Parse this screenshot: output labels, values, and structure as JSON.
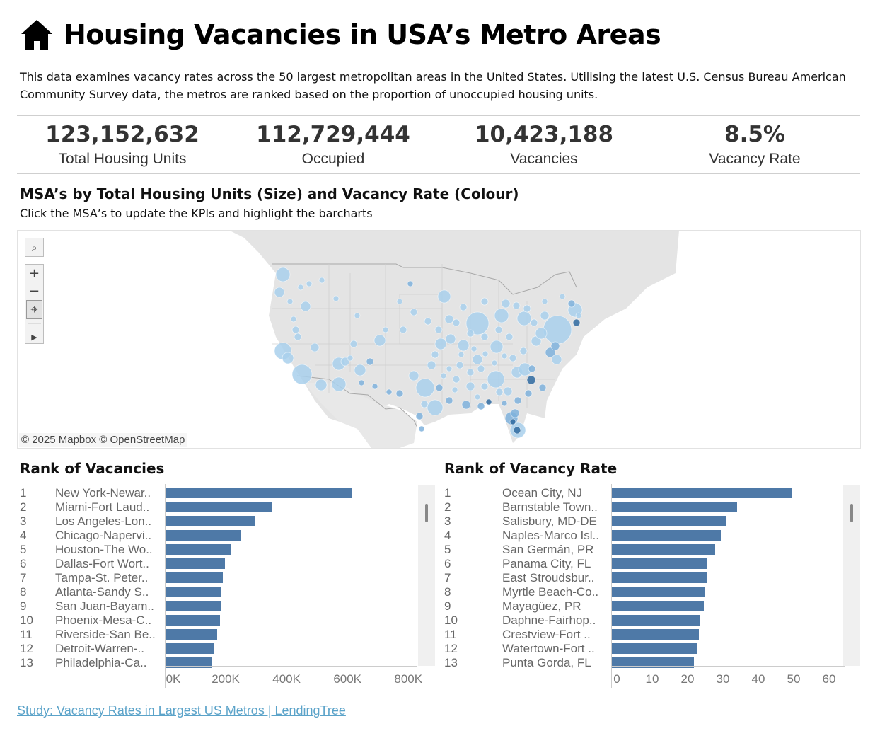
{
  "header": {
    "icon": "home-icon",
    "title": "Housing Vacancies in USA’s Metro Areas",
    "description": "This data  examines vacancy rates across the 50 largest metropolitan areas in the United States. Utilising the latest U.S. Census Bureau American Community Survey data, the metros are ranked based on the proportion of unoccupied housing units."
  },
  "kpis": [
    {
      "value": "123,152,632",
      "label": "Total Housing Units"
    },
    {
      "value": "112,729,444",
      "label": "Occupied"
    },
    {
      "value": "10,423,188",
      "label": "Vacancies"
    },
    {
      "value": "8.5%",
      "label": "Vacancy Rate"
    }
  ],
  "map": {
    "title": "MSA’s by Total Housing Units (Size) and Vacancy Rate (Colour)",
    "subtitle": "Click the MSA’s to update the KPIs and highlight the barcharts",
    "attribution": "© 2025 Mapbox © OpenStreetMap",
    "controls": {
      "search": "⌕",
      "zoom_in": "+",
      "zoom_out": "−",
      "pin": "⌖",
      "expand": "▶"
    },
    "colors": {
      "light": "#a9d0ec",
      "mid": "#7fb2dc",
      "dark": "#2f6aa0"
    }
  },
  "chart_data": [
    {
      "type": "bar",
      "title": "Rank of Vacancies",
      "orientation": "horizontal",
      "ranks": [
        "1",
        "2",
        "3",
        "4",
        "5",
        "6",
        "7",
        "8",
        "9",
        "10",
        "11",
        "12",
        "13"
      ],
      "categories": [
        "New York-Newar..",
        "Miami-Fort Laud..",
        "Los Angeles-Lon..",
        "Chicago-Napervi..",
        "Houston-The Wo..",
        "Dallas-Fort Wort..",
        "Tampa-St. Peter..",
        "Atlanta-Sandy S..",
        "San Juan-Bayam..",
        "Phoenix-Mesa-C..",
        "Riverside-San Be..",
        "Detroit-Warren-..",
        "Philadelphia-Ca.."
      ],
      "values": [
        616000,
        351000,
        298000,
        251000,
        219000,
        198000,
        191000,
        184000,
        184000,
        181000,
        172000,
        160000,
        156000
      ],
      "xlim": [
        0,
        825000
      ],
      "ticks": [
        0,
        200000,
        400000,
        600000,
        800000
      ],
      "tick_labels": [
        "0K",
        "200K",
        "400K",
        "600K",
        "800K"
      ],
      "xlabel": "",
      "ylabel": "",
      "color": "#4e79a7"
    },
    {
      "type": "bar",
      "title": "Rank of Vacancy Rate",
      "orientation": "horizontal",
      "ranks": [
        "1",
        "2",
        "3",
        "4",
        "5",
        "6",
        "7",
        "8",
        "9",
        "10",
        "11",
        "12",
        "13"
      ],
      "categories": [
        "Ocean City, NJ",
        "Barnstable Town..",
        "Salisbury, MD-DE",
        "Naples-Marco Isl..",
        "San Germán, PR",
        "Panama City, FL",
        "East Stroudsbur..",
        "Myrtle Beach-Co..",
        "Mayagüez, PR",
        "Daphne-Fairhop..",
        "Crestview-Fort ..",
        "Watertown-Fort ..",
        "Punta Gorda, FL"
      ],
      "values": [
        51.2,
        35.6,
        32.4,
        31.0,
        29.4,
        27.2,
        27.0,
        26.6,
        26.2,
        25.2,
        24.8,
        24.2,
        23.4
      ],
      "xlim": [
        0,
        65
      ],
      "ticks": [
        0,
        10,
        20,
        30,
        40,
        50,
        60
      ],
      "tick_labels": [
        "0",
        "10",
        "20",
        "30",
        "40",
        "50",
        "60"
      ],
      "xlabel": "",
      "ylabel": "",
      "color": "#4e79a7"
    }
  ],
  "footer": {
    "link_text": "Study: Vacancy Rates in Largest US Metros | LendingTree"
  }
}
